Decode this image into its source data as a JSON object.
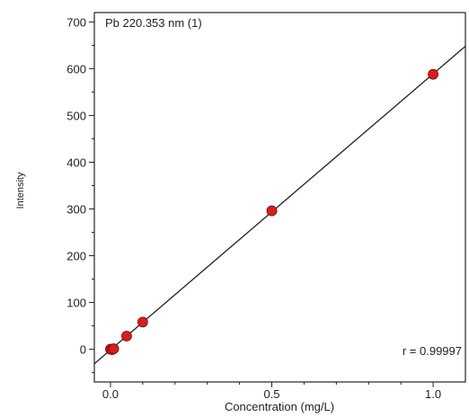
{
  "chart_data": {
    "type": "scatter",
    "title": "Pb 220.353 nm (1)",
    "xlabel": "Concentration (mg/L)",
    "ylabel": "Intensity",
    "annotation": "r = 0.99997",
    "xlim": [
      -0.05,
      1.1
    ],
    "ylim": [
      -70,
      720
    ],
    "x_ticks": [
      0.0,
      0.5,
      1.0
    ],
    "x_tick_labels": [
      "0.0",
      "0.5",
      "1.0"
    ],
    "y_ticks": [
      0,
      100,
      200,
      300,
      400,
      500,
      600,
      700
    ],
    "y_tick_labels": [
      "0",
      "100",
      "200",
      "300",
      "400",
      "500",
      "600",
      "700"
    ],
    "grid": false,
    "series": [
      {
        "color": "#d81e1e",
        "x": [
          0.0,
          0.005,
          0.01,
          0.05,
          0.1,
          0.5,
          1.0
        ],
        "y": [
          0,
          -1,
          1,
          28,
          58,
          296,
          588
        ]
      }
    ],
    "fit_line": {
      "slope": 590.5,
      "intercept": -1.5,
      "color": "#222222"
    }
  }
}
